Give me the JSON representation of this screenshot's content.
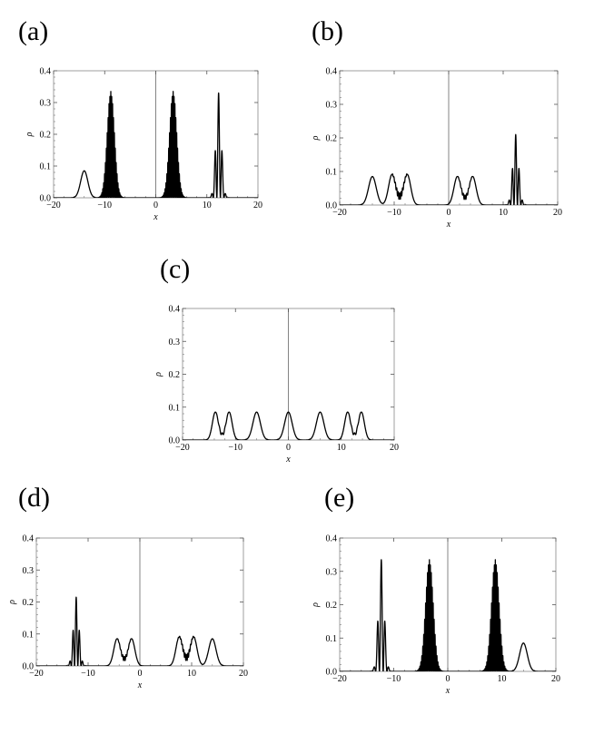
{
  "chart_data": [
    {
      "id": "a",
      "label": "(a)",
      "type": "line",
      "xlabel": "x",
      "ylabel": "ρ",
      "xlim": [
        -20,
        20
      ],
      "ylim": [
        0,
        0.4
      ],
      "xticks": [
        -20,
        -10,
        0,
        10,
        20
      ],
      "yticks": [
        0.0,
        0.1,
        0.2,
        0.3,
        0.4
      ],
      "xtick_labels": [
        "−20",
        "−10",
        "0",
        "10",
        "20"
      ],
      "ytick_labels": [
        "0.0",
        "0.1",
        "0.2",
        "0.3",
        "0.4"
      ],
      "vline_x": 0,
      "grid": false,
      "legend": "none",
      "peaks": [
        {
          "center": -14,
          "amp": 0.085,
          "width": 1.0,
          "osc": 0
        },
        {
          "center": -8.8,
          "amp": 0.335,
          "width": 1.0,
          "osc": 18
        },
        {
          "center": 3.4,
          "amp": 0.335,
          "width": 1.0,
          "osc": 18
        },
        {
          "center": 12.3,
          "amp": 0.33,
          "width": 0.75,
          "osc": 4.5
        }
      ]
    },
    {
      "id": "b",
      "label": "(b)",
      "type": "line",
      "xlabel": "x",
      "ylabel": "ρ",
      "xlim": [
        -20,
        20
      ],
      "ylim": [
        0,
        0.4
      ],
      "xticks": [
        -20,
        -10,
        0,
        10,
        20
      ],
      "yticks": [
        0.0,
        0.1,
        0.2,
        0.3,
        0.4
      ],
      "xtick_labels": [
        "−20",
        "−10",
        "0",
        "10",
        "20"
      ],
      "ytick_labels": [
        "0.0",
        "0.1",
        "0.2",
        "0.3",
        "0.4"
      ],
      "vline_x": 0,
      "grid": false,
      "legend": "none",
      "peaks": [
        {
          "center": -14,
          "amp": 0.085,
          "width": 1.0,
          "osc": 0
        },
        {
          "center": -10.4,
          "amp": 0.09,
          "width": 0.9,
          "osc": 0
        },
        {
          "center": -7.6,
          "amp": 0.09,
          "width": 0.9,
          "osc": 0
        },
        {
          "center": -9.0,
          "amp": 0.02,
          "width": 1.0,
          "osc": 12
        },
        {
          "center": 1.6,
          "amp": 0.085,
          "width": 0.9,
          "osc": 0
        },
        {
          "center": 4.4,
          "amp": 0.085,
          "width": 0.9,
          "osc": 0
        },
        {
          "center": 3.0,
          "amp": 0.015,
          "width": 0.8,
          "osc": 10
        },
        {
          "center": 12.3,
          "amp": 0.21,
          "width": 0.75,
          "osc": 5
        }
      ]
    },
    {
      "id": "c",
      "label": "(c)",
      "type": "line",
      "xlabel": "x",
      "ylabel": "ρ",
      "xlim": [
        -20,
        20
      ],
      "ylim": [
        0,
        0.4
      ],
      "xticks": [
        -20,
        -10,
        0,
        10,
        20
      ],
      "yticks": [
        0.0,
        0.1,
        0.2,
        0.3,
        0.4
      ],
      "xtick_labels": [
        "−20",
        "−10",
        "0",
        "10",
        "20"
      ],
      "ytick_labels": [
        "0.0",
        "0.1",
        "0.2",
        "0.3",
        "0.4"
      ],
      "vline_x": 0,
      "grid": false,
      "legend": "none",
      "peaks": [
        {
          "center": -13.8,
          "amp": 0.085,
          "width": 0.8,
          "osc": 0
        },
        {
          "center": -11.2,
          "amp": 0.085,
          "width": 0.8,
          "osc": 0
        },
        {
          "center": -12.5,
          "amp": 0.01,
          "width": 0.8,
          "osc": 6
        },
        {
          "center": -6.0,
          "amp": 0.085,
          "width": 1.0,
          "osc": 0
        },
        {
          "center": 0.0,
          "amp": 0.085,
          "width": 1.0,
          "osc": 0
        },
        {
          "center": 6.0,
          "amp": 0.085,
          "width": 1.0,
          "osc": 0
        },
        {
          "center": 11.2,
          "amp": 0.085,
          "width": 0.8,
          "osc": 0
        },
        {
          "center": 13.8,
          "amp": 0.085,
          "width": 0.8,
          "osc": 0
        },
        {
          "center": 12.5,
          "amp": 0.01,
          "width": 0.8,
          "osc": 6
        }
      ]
    },
    {
      "id": "d",
      "label": "(d)",
      "type": "line",
      "xlabel": "x",
      "ylabel": "ρ",
      "xlim": [
        -20,
        20
      ],
      "ylim": [
        0,
        0.4
      ],
      "xticks": [
        -20,
        -10,
        0,
        10,
        20
      ],
      "yticks": [
        0.0,
        0.1,
        0.2,
        0.3,
        0.4
      ],
      "xtick_labels": [
        "−20",
        "−10",
        "0",
        "10",
        "20"
      ],
      "ytick_labels": [
        "0.0",
        "0.1",
        "0.2",
        "0.3",
        "0.4"
      ],
      "vline_x": 0,
      "grid": false,
      "legend": "none",
      "peaks": [
        {
          "center": -12.3,
          "amp": 0.215,
          "width": 0.75,
          "osc": 5
        },
        {
          "center": -4.4,
          "amp": 0.085,
          "width": 0.9,
          "osc": 0
        },
        {
          "center": -1.6,
          "amp": 0.085,
          "width": 0.9,
          "osc": 0
        },
        {
          "center": -3.0,
          "amp": 0.015,
          "width": 0.8,
          "osc": 10
        },
        {
          "center": 7.6,
          "amp": 0.09,
          "width": 0.9,
          "osc": 0
        },
        {
          "center": 10.4,
          "amp": 0.09,
          "width": 0.9,
          "osc": 0
        },
        {
          "center": 9.0,
          "amp": 0.02,
          "width": 1.0,
          "osc": 12
        },
        {
          "center": 14,
          "amp": 0.085,
          "width": 1.0,
          "osc": 0
        }
      ]
    },
    {
      "id": "e",
      "label": "(e)",
      "type": "line",
      "xlabel": "x",
      "ylabel": "ρ",
      "xlim": [
        -20,
        20
      ],
      "ylim": [
        0,
        0.4
      ],
      "xticks": [
        -20,
        -10,
        0,
        10,
        20
      ],
      "yticks": [
        0.0,
        0.1,
        0.2,
        0.3,
        0.4
      ],
      "xtick_labels": [
        "−20",
        "−10",
        "0",
        "10",
        "20"
      ],
      "ytick_labels": [
        "0.0",
        "0.1",
        "0.2",
        "0.3",
        "0.4"
      ],
      "vline_x": 0,
      "grid": false,
      "legend": "none",
      "peaks": [
        {
          "center": -12.3,
          "amp": 0.335,
          "width": 0.75,
          "osc": 4.5
        },
        {
          "center": -3.4,
          "amp": 0.335,
          "width": 1.0,
          "osc": 18
        },
        {
          "center": 8.8,
          "amp": 0.335,
          "width": 1.0,
          "osc": 18
        },
        {
          "center": 14,
          "amp": 0.085,
          "width": 1.0,
          "osc": 0
        }
      ]
    }
  ]
}
